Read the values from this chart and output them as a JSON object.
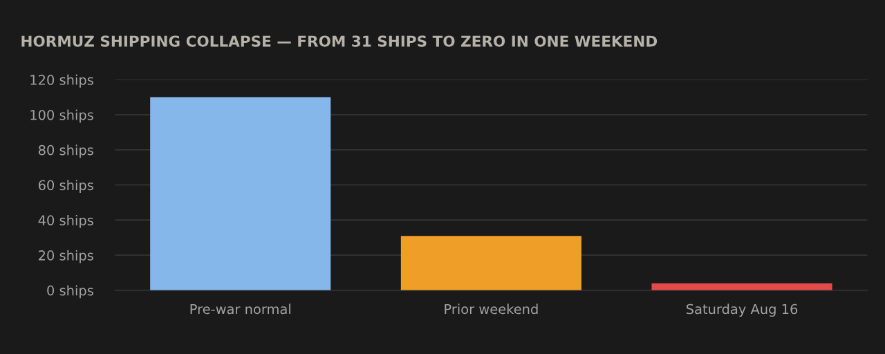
{
  "chart_data": {
    "type": "bar",
    "title": "HORMUZ SHIPPING COLLAPSE — FROM 31 SHIPS TO ZERO IN ONE WEEKEND",
    "categories": [
      "Pre-war normal",
      "Prior weekend",
      "Saturday Aug 16"
    ],
    "values": [
      110,
      31,
      4
    ],
    "colors": [
      "#85b7eb",
      "#ef9f27",
      "#e24b4a"
    ],
    "ylim": [
      0,
      120
    ],
    "yticks": [
      {
        "value": 0,
        "label": "0 ships"
      },
      {
        "value": 20,
        "label": "20 ships"
      },
      {
        "value": 40,
        "label": "40 ships"
      },
      {
        "value": 60,
        "label": "60 ships"
      },
      {
        "value": 80,
        "label": "80 ships"
      },
      {
        "value": 100,
        "label": "100 ships"
      },
      {
        "value": 120,
        "label": "120 ships"
      }
    ],
    "grid": "y"
  }
}
